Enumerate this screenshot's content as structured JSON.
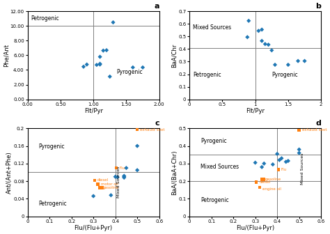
{
  "chart_data": [
    {
      "type": "scatter",
      "title": "a",
      "x_label": "Flt/Pyr",
      "y_label": "Phe/Ant",
      "xlim": [
        0.0,
        2.0
      ],
      "ylim": [
        0.0,
        12.0
      ],
      "xticks": [
        {
          "value": 0.0,
          "label": "0.00"
        },
        {
          "value": 0.5,
          "label": "0.50"
        },
        {
          "value": 1.0,
          "label": "1.00"
        },
        {
          "value": 1.5,
          "label": "1.50"
        },
        {
          "value": 2.0,
          "label": "2.00"
        }
      ],
      "yticks": [
        {
          "value": 0.0,
          "label": "0.00"
        },
        {
          "value": 2.0,
          "label": "2.00"
        },
        {
          "value": 4.0,
          "label": "4.00"
        },
        {
          "value": 6.0,
          "label": "6.00"
        },
        {
          "value": 8.0,
          "label": "8.00"
        },
        {
          "value": 10.0,
          "label": "10.00"
        },
        {
          "value": 12.0,
          "label": "12.00"
        }
      ],
      "grid": false,
      "vlines": [
        1.0
      ],
      "hlines": [
        10.0
      ],
      "series": [
        {
          "marker": "diamond",
          "x": [
            0.85,
            0.9,
            1.05,
            1.1,
            1.1,
            1.1,
            1.15,
            1.2,
            1.25,
            1.3,
            1.6,
            1.75
          ],
          "y": [
            4.45,
            4.75,
            4.7,
            4.75,
            4.85,
            5.8,
            6.65,
            6.7,
            3.1,
            10.5,
            4.35,
            4.35
          ]
        }
      ],
      "annotations": [
        {
          "text": "Petrogenic",
          "x": 0.05,
          "y": 10.8
        },
        {
          "text": "Pyrogenic",
          "x": 1.35,
          "y": 3.5
        }
      ]
    },
    {
      "type": "scatter",
      "title": "b",
      "x_label": "Flt/Pyr",
      "y_label": "BaA/Chr",
      "xlim": [
        0.0,
        2.0
      ],
      "ylim": [
        0.0,
        0.7
      ],
      "xticks": [
        0,
        0.5,
        1,
        1.5,
        2
      ],
      "yticks": [
        0,
        0.1,
        0.2,
        0.3,
        0.4,
        0.5,
        0.6,
        0.7
      ],
      "grid": false,
      "vlines": [
        1.0
      ],
      "hlines": [
        0.41
      ],
      "series": [
        {
          "marker": "diamond",
          "x": [
            0.88,
            0.9,
            1.05,
            1.1,
            1.1,
            1.15,
            1.2,
            1.25,
            1.3,
            1.5,
            1.65,
            1.75
          ],
          "y": [
            0.495,
            0.625,
            0.545,
            0.555,
            0.465,
            0.44,
            0.435,
            0.39,
            0.275,
            0.275,
            0.305,
            0.305
          ]
        }
      ],
      "annotations": [
        {
          "text": "Mixed Sources",
          "x": 0.05,
          "y": 0.56
        },
        {
          "text": "Petrogenic",
          "x": 0.05,
          "y": 0.18
        },
        {
          "text": "Pyrogenic",
          "x": 1.25,
          "y": 0.18
        }
      ]
    },
    {
      "type": "scatter",
      "title": "c",
      "x_label": "Flu/(Flu+Pyr)",
      "y_label": "Ant/(Ant+Phe)",
      "xlim": [
        0.0,
        0.6
      ],
      "ylim": [
        0.0,
        0.2
      ],
      "xticks": [
        0,
        0.1,
        0.2,
        0.3,
        0.4,
        0.5,
        0.6
      ],
      "yticks": [
        0,
        0.04,
        0.08,
        0.12,
        0.16,
        0.2
      ],
      "grid": false,
      "vlines": [
        0.4
      ],
      "hlines": [
        0.1
      ],
      "series": [
        {
          "marker": "diamond",
          "x": [
            0.3,
            0.38,
            0.4,
            0.41,
            0.44,
            0.44,
            0.44,
            0.45,
            0.5,
            0.5
          ],
          "y": [
            0.046,
            0.048,
            0.09,
            0.089,
            0.088,
            0.09,
            0.092,
            0.11,
            0.16,
            0.105
          ]
        },
        {
          "marker": "square",
          "x": [
            0.305,
            0.32,
            0.33,
            0.34,
            0.405,
            0.5
          ],
          "y": [
            0.082,
            0.073,
            0.065,
            0.065,
            0.11,
            0.197
          ],
          "annotations": [
            {
              "text": "diesel",
              "x": 0.305,
              "y": 0.082
            },
            {
              "text": "motor oil",
              "x": 0.32,
              "y": 0.073
            },
            {
              "text": "gasoline",
              "x": 0.33,
              "y": 0.065
            },
            {
              "text": "Flu",
              "x": 0.405,
              "y": 0.11
            },
            {
              "text": "exhaust soot",
              "x": 0.5,
              "y": 0.197
            }
          ]
        }
      ],
      "annotations": [
        {
          "text": "Mixed Sources",
          "x": 0.415,
          "y": 0.078,
          "orientation": "vertical"
        },
        {
          "text": "Pyrogenic",
          "x": 0.05,
          "y": 0.155
        },
        {
          "text": "Petrogenic",
          "x": 0.05,
          "y": 0.025
        }
      ]
    },
    {
      "type": "scatter",
      "title": "d",
      "x_label": "Flu/(Flu+Pyr)",
      "y_label": "BaA/(BaA+Chr)",
      "xlim": [
        0.0,
        0.6
      ],
      "ylim": [
        0.0,
        0.5
      ],
      "xticks": [
        0,
        0.1,
        0.2,
        0.3,
        0.4,
        0.5,
        0.6
      ],
      "yticks": [
        0,
        0.1,
        0.2,
        0.3,
        0.4,
        0.5
      ],
      "grid": false,
      "vlines": [
        0.4
      ],
      "hlines": [
        0.35,
        0.2
      ],
      "series": [
        {
          "marker": "diamond",
          "x": [
            0.3,
            0.33,
            0.34,
            0.38,
            0.4,
            0.41,
            0.42,
            0.44,
            0.45,
            0.5,
            0.5
          ],
          "y": [
            0.305,
            0.28,
            0.3,
            0.295,
            0.355,
            0.32,
            0.33,
            0.31,
            0.315,
            0.38,
            0.36
          ]
        },
        {
          "marker": "square",
          "x": [
            0.305,
            0.32,
            0.33,
            0.34,
            0.405,
            0.5
          ],
          "y": [
            0.195,
            0.165,
            0.21,
            0.21,
            0.265,
            0.49
          ],
          "annotations": [
            {
              "text": "diesel",
              "x": 0.305,
              "y": 0.195
            },
            {
              "text": "engine oil",
              "x": 0.32,
              "y": 0.155
            },
            {
              "text": "gasoline",
              "x": 0.33,
              "y": 0.21
            },
            {
              "text": "Flu",
              "x": 0.405,
              "y": 0.265
            },
            {
              "text": "exhaust soot",
              "x": 0.5,
              "y": 0.49
            }
          ]
        }
      ],
      "annotations": [
        {
          "text": "Mixed Sources",
          "x": 0.515,
          "y": 0.27,
          "orientation": "vertical"
        },
        {
          "text": "Pyrogenic",
          "x": 0.05,
          "y": 0.42
        },
        {
          "text": "Mixed Sources",
          "x": 0.05,
          "y": 0.27
        },
        {
          "text": "Petrogenic",
          "x": 0.05,
          "y": 0.08
        }
      ]
    }
  ]
}
